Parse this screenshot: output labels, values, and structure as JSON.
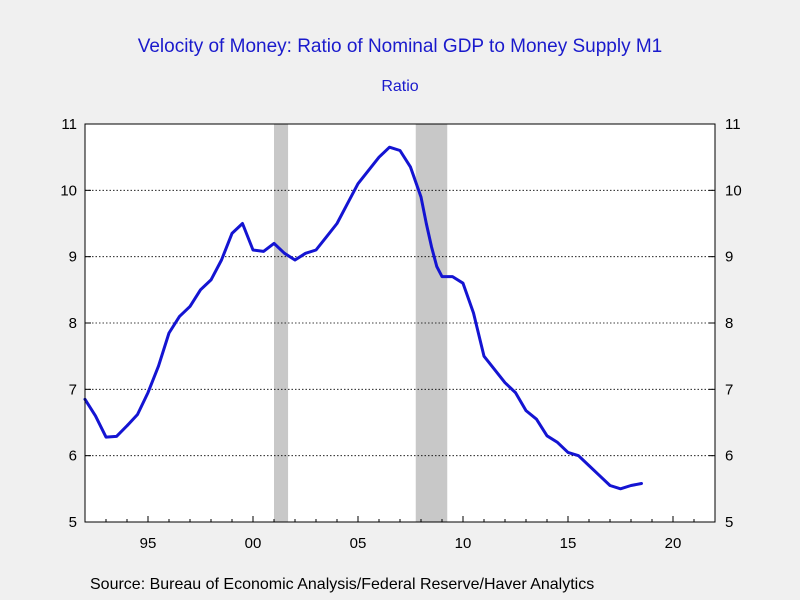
{
  "title": "Velocity of Money: Ratio of Nominal GDP to Money Supply M1",
  "subtitle": "Ratio",
  "source": "Source:  Bureau of Economic Analysis/Federal Reserve/Haver Analytics",
  "colors": {
    "line": "#1414d2",
    "recession": "#c8c8c8",
    "title": "#1a1acc",
    "background": "#f0f0f0",
    "plot_background": "#ffffff"
  },
  "chart_data": {
    "type": "line",
    "title": "Velocity of Money: Ratio of Nominal GDP to Money Supply M1",
    "ylabel": "Ratio",
    "xlim": [
      1992.0,
      2022.0
    ],
    "ylim": [
      5,
      11
    ],
    "grid": "horizontal dotted",
    "y_ticks": [
      5,
      6,
      7,
      8,
      9,
      10,
      11
    ],
    "y_tick_labels": [
      "5",
      "6",
      "7",
      "8",
      "9",
      "10",
      "11"
    ],
    "x_ticks": [
      1995,
      2000,
      2005,
      2010,
      2015,
      2020
    ],
    "x_tick_labels": [
      "95",
      "00",
      "05",
      "10",
      "15",
      "20"
    ],
    "recessions": [
      [
        2001.0,
        2001.67
      ],
      [
        2007.75,
        2009.25
      ]
    ],
    "series": [
      {
        "x": [
          1992.0,
          1992.5,
          1993.0,
          1993.5,
          1994.0,
          1994.5,
          1995.0,
          1995.5,
          1996.0,
          1996.5,
          1997.0,
          1997.5,
          1998.0,
          1998.5,
          1999.0,
          1999.5,
          2000.0,
          2000.5,
          2001.0,
          2001.5,
          2002.0,
          2002.5,
          2003.0,
          2003.5,
          2004.0,
          2004.5,
          2005.0,
          2005.5,
          2006.0,
          2006.5,
          2007.0,
          2007.5,
          2008.0,
          2008.25,
          2008.5,
          2008.75,
          2009.0,
          2009.5,
          2010.0,
          2010.5,
          2011.0,
          2011.5,
          2012.0,
          2012.5,
          2013.0,
          2013.5,
          2014.0,
          2014.5,
          2015.0,
          2015.5,
          2016.0,
          2016.5,
          2017.0,
          2017.5,
          2018.0,
          2018.5
        ],
        "values": [
          6.85,
          6.6,
          6.28,
          6.29,
          6.45,
          6.62,
          6.95,
          7.35,
          7.85,
          8.1,
          8.25,
          8.5,
          8.65,
          8.95,
          9.35,
          9.5,
          9.1,
          9.08,
          9.2,
          9.05,
          8.95,
          9.05,
          9.1,
          9.3,
          9.5,
          9.8,
          10.1,
          10.3,
          10.5,
          10.65,
          10.6,
          10.35,
          9.9,
          9.5,
          9.15,
          8.85,
          8.7,
          8.7,
          8.6,
          8.15,
          7.5,
          7.3,
          7.1,
          6.95,
          6.68,
          6.55,
          6.3,
          6.2,
          6.05,
          6.0,
          5.85,
          5.7,
          5.55,
          5.5,
          5.55,
          5.58
        ]
      }
    ]
  }
}
